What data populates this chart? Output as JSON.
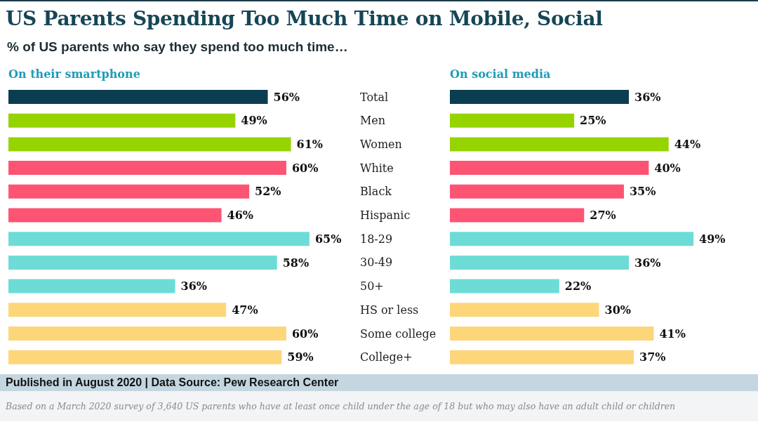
{
  "chart_data": [
    {
      "type": "other",
      "title": "US Parents Spending Too Much Time on Mobile, Social",
      "subtitle": "% of US parents who say they spend too much time…",
      "annotations": [
        "Published in August 2020 | Data Source: Pew Research Center",
        "Based on a March 2020 survey of 3,640 US parents who have at least once child under the age of 18 but who may also have an adult child or children"
      ]
    },
    {
      "type": "bar",
      "orientation": "horizontal",
      "title": "On their smartphone",
      "categories": [
        "Total",
        "Men",
        "Women",
        "White",
        "Black",
        "Hispanic",
        "18-29",
        "30-49",
        "50+",
        "HS or less",
        "Some college",
        "College+"
      ],
      "values": [
        56,
        49,
        61,
        60,
        52,
        46,
        65,
        58,
        36,
        47,
        60,
        59
      ],
      "value_labels": [
        "56%",
        "49%",
        "61%",
        "60%",
        "52%",
        "46%",
        "65%",
        "58%",
        "36%",
        "47%",
        "60%",
        "59%"
      ],
      "colors": [
        "#0a3d4f",
        "#96d400",
        "#96d400",
        "#fd5473",
        "#fd5473",
        "#fd5473",
        "#6edcd6",
        "#6edcd6",
        "#6edcd6",
        "#fed67a",
        "#fed67a",
        "#fed67a"
      ],
      "tick_labels": "y"
    },
    {
      "type": "bar",
      "orientation": "horizontal",
      "title": "On social media",
      "categories": [
        null,
        null,
        null,
        null,
        null,
        null,
        null,
        null,
        null,
        null,
        null,
        null
      ],
      "values": [
        36,
        25,
        44,
        40,
        35,
        27,
        49,
        36,
        22,
        30,
        41,
        37
      ],
      "value_labels": [
        "36%",
        "25%",
        "44%",
        "40%",
        "35%",
        "27%",
        "49%",
        "36%",
        "22%",
        "30%",
        "41%",
        "37%"
      ],
      "colors": [
        "#0a3d4f",
        "#96d400",
        "#96d400",
        "#fd5473",
        "#fd5473",
        "#fd5473",
        "#6edcd6",
        "#6edcd6",
        "#6edcd6",
        "#fed67a",
        "#fed67a",
        "#fed67a"
      ],
      "tick_labels": false
    }
  ]
}
